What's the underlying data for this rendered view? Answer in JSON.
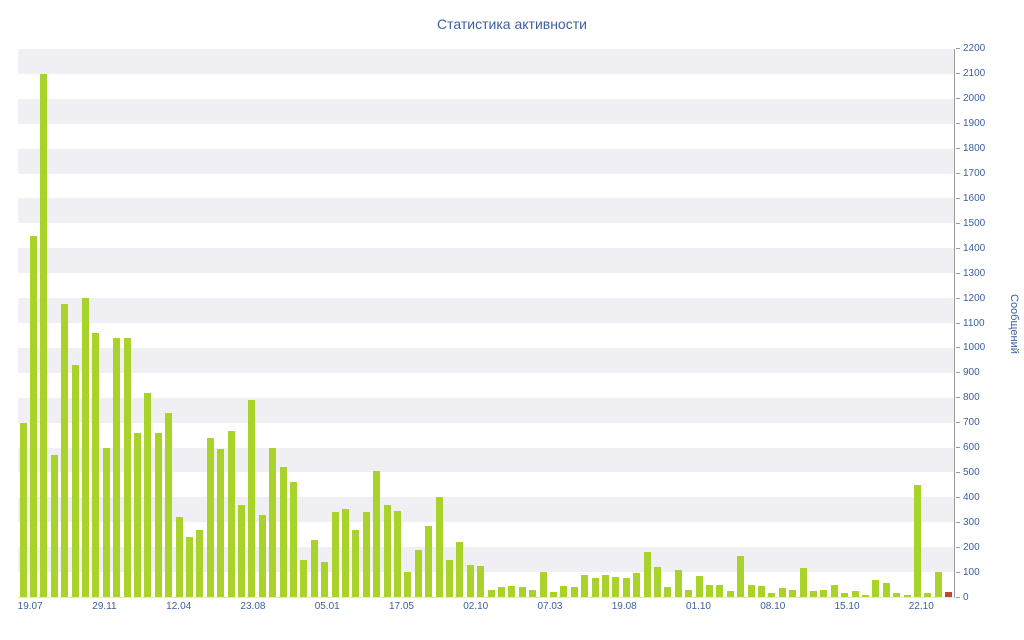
{
  "chart_data": {
    "type": "bar",
    "title": "Статистика активности",
    "ylabel": "Сообщений",
    "ylim": [
      0,
      2200
    ],
    "ytick_step": 100,
    "grid": "horizontal-bands",
    "legend": "none",
    "bar_color": "#a9d32a",
    "last_bar_color": "#c6452f",
    "band_color_even": "#ffffff",
    "band_color_odd": "#f0f0f4",
    "axis_text_color": "#3b5fa0",
    "x_tick_labels": [
      "19.07",
      "29.11",
      "12.04",
      "23.08",
      "05.01",
      "17.05",
      "02.10",
      "07.03",
      "19.08",
      "01.10",
      "08.10",
      "15.10",
      "22.10"
    ],
    "values": [
      700,
      1450,
      2100,
      570,
      1175,
      930,
      1200,
      1060,
      600,
      1040,
      1040,
      660,
      820,
      660,
      740,
      320,
      240,
      270,
      640,
      595,
      665,
      370,
      790,
      330,
      600,
      520,
      460,
      150,
      230,
      140,
      340,
      355,
      270,
      340,
      505,
      370,
      345,
      100,
      190,
      285,
      400,
      150,
      220,
      130,
      125,
      30,
      40,
      45,
      40,
      30,
      100,
      20,
      45,
      40,
      90,
      75,
      90,
      80,
      75,
      95,
      180,
      120,
      40,
      110,
      30,
      85,
      50,
      50,
      25,
      165,
      50,
      45,
      15,
      35,
      30,
      115,
      25,
      30,
      50,
      15,
      25,
      10,
      70,
      55,
      15,
      10,
      450,
      15,
      100,
      20
    ]
  }
}
